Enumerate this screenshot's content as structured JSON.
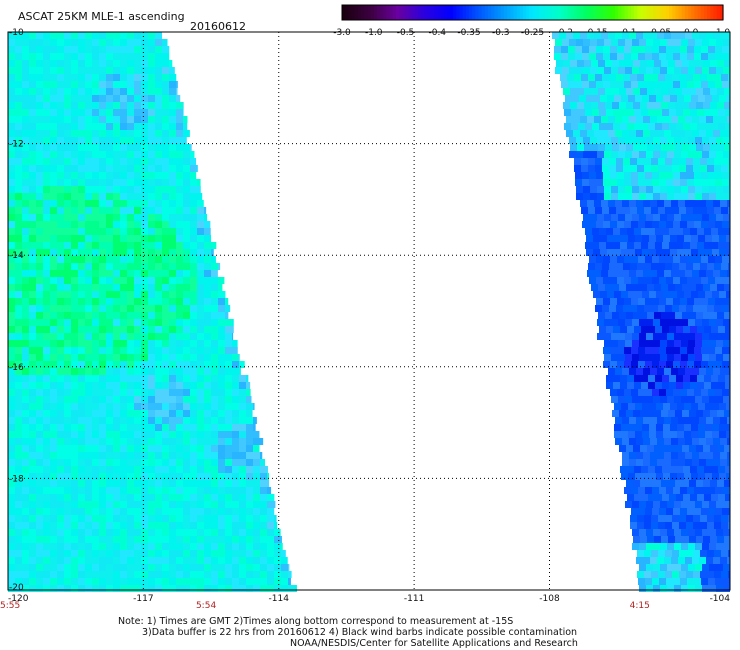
{
  "header": {
    "title": "ASCAT 25KM MLE-1 ascending",
    "date": "20160612"
  },
  "colorbar": {
    "ticks": [
      "-3.0",
      "-1.0",
      "-0.5",
      "-0.4",
      "-0.35",
      "-0.3",
      "-0.25",
      "-0.2",
      "-0.15",
      "-0.1",
      "-0.05",
      "0.0",
      "1.0"
    ],
    "colors": [
      "#1a0010",
      "#3c0040",
      "#6a00a0",
      "#2a00e0",
      "#0000ff",
      "#0055ff",
      "#00a0ff",
      "#00e8ff",
      "#00ffc8",
      "#00ff60",
      "#30ff00",
      "#c8ff00",
      "#ffd000",
      "#ff7000",
      "#ff2000"
    ]
  },
  "map": {
    "lat_labels": [
      "-10",
      "-12",
      "-14",
      "-16",
      "-18",
      "-20"
    ],
    "lon_labels": [
      "-120",
      "-117",
      "-114",
      "-111",
      "-108",
      "-104"
    ],
    "time_labels": [
      {
        "text": "5:55",
        "lon": -120
      },
      {
        "text": "5:54",
        "lon": -114
      },
      {
        "text": "4:15",
        "lon": -106
      }
    ],
    "lat_range": [
      -20,
      -10
    ],
    "lon_range": [
      -120,
      -104
    ]
  },
  "notes": {
    "line1": "Note: 1) Times are GMT 2)Times along bottom correspond to measurement at -15S",
    "line2": "3)Data buffer is 22 hrs from 20160612 4) Black wind barbs indicate possible contamination",
    "line3": "NOAA/NESDIS/Center for Satellite Applications and Research"
  }
}
